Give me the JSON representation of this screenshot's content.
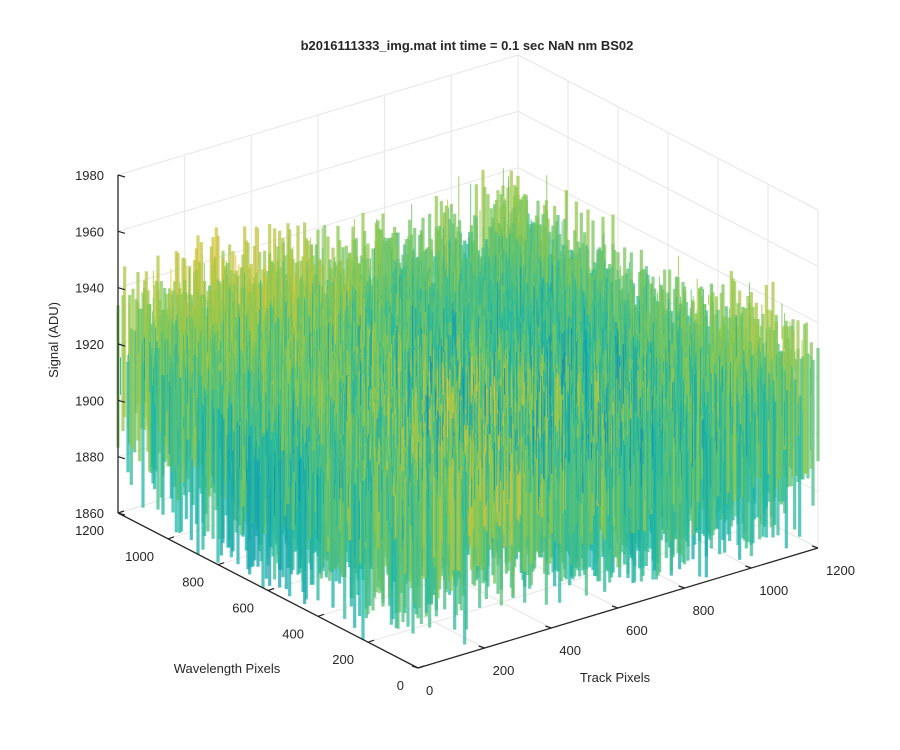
{
  "chart_data": {
    "type": "surface",
    "title": "b2016111333_img.mat int time = 0.1 sec  NaN nm BS02",
    "xlabel": "Track Pixels",
    "ylabel": "Wavelength Pixels",
    "zlabel": "Signal (ADU)",
    "xlim": [
      0,
      1200
    ],
    "ylim": [
      0,
      1200
    ],
    "zlim": [
      1860,
      1980
    ],
    "x_ticks": [
      "0",
      "200",
      "400",
      "600",
      "800",
      "1000",
      "1200"
    ],
    "y_ticks": [
      "0",
      "200",
      "400",
      "600",
      "800",
      "1000",
      "1200"
    ],
    "z_ticks": [
      "1860",
      "1880",
      "1900",
      "1920",
      "1940",
      "1960",
      "1980"
    ],
    "grid": true,
    "colormap": "parula",
    "colors": {
      "low": "#0072bd",
      "mid": "#1fb8a6",
      "high": "#f2c12e"
    },
    "surface_summary": {
      "typical_signal": 1915,
      "noise_range": [
        1865,
        1970
      ]
    }
  }
}
